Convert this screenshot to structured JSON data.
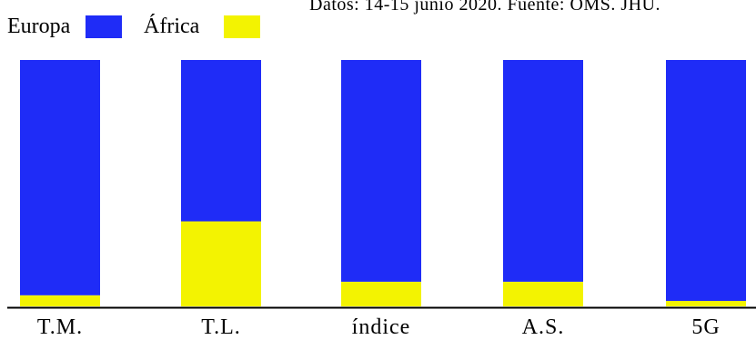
{
  "source_note": "Datos: 14-15 junio 2020.    Fuente: OMS. JHU.",
  "colors": {
    "europa": "#1f2cf7",
    "africa": "#f3f301",
    "axis": "#000000"
  },
  "chart_data": {
    "type": "bar",
    "stacked": true,
    "normalized": true,
    "categories": [
      "T.M.",
      "T.L.",
      "índice",
      "A.S.",
      "5G"
    ],
    "series": [
      {
        "name": "Europa",
        "values": [
          95.5,
          65.5,
          90.0,
          90.0,
          97.8
        ]
      },
      {
        "name": "África",
        "values": [
          4.5,
          34.5,
          10.0,
          10.0,
          2.2
        ]
      }
    ],
    "ylim": [
      0,
      100
    ],
    "title": "",
    "xlabel": "",
    "ylabel": "",
    "grid": false,
    "legend": "top-left"
  }
}
